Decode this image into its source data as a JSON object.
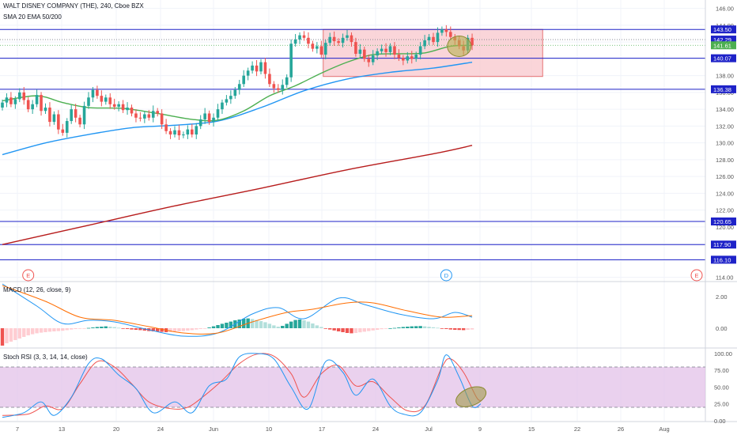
{
  "header": {
    "symbol_line": "WALT DISNEY COMPANY (THE), 240, Cboe BZX",
    "indicators_line": "SMA 20 EMA 50/200"
  },
  "panes": {
    "macd_label": "MACD (12, 26, close, 9)",
    "stoch_label": "Stoch RSI (3, 3, 14, 14, close)"
  },
  "colors": {
    "up": "#26a69a",
    "down": "#ef5350",
    "sma20": "#4caf50",
    "ema50": "#2196f3",
    "ema200": "#b71c1c",
    "level_line": "#1e22c8",
    "macd_line": "#2196f3",
    "signal_line": "#ff6d00",
    "stoch_k": "#2196f3",
    "stoch_d": "#ef5350",
    "box_fill": "#f8c7cc",
    "box_stroke": "#e57373",
    "ellipse_fill": "#b8b050",
    "stoch_band": "#e1bee7"
  },
  "chart_data": [
    {
      "type": "candlestick",
      "pane": "price",
      "ylim": [
        113.5,
        147
      ],
      "yticks": [
        114,
        116,
        118,
        120,
        122,
        124,
        126,
        128,
        130,
        132,
        134,
        136,
        138,
        140,
        142,
        144,
        146
      ],
      "xticks": [
        "7",
        "13",
        "Jun",
        "20",
        "24",
        "Jun",
        "10",
        "17",
        "24",
        "Jul",
        "9",
        "15",
        "22",
        "26",
        "Aug"
      ],
      "level_lines": [
        143.5,
        140.07,
        136.38,
        120.65,
        117.9,
        116.1
      ],
      "price_tags": [
        {
          "value": 143.5,
          "label": "143.50",
          "color": "#1e22c8"
        },
        {
          "value": 142.29,
          "label": "142.29",
          "color": "#1e22c8"
        },
        {
          "value": 141.61,
          "label": "141.61",
          "color": "#4caf50"
        },
        {
          "value": 140.07,
          "label": "140.07",
          "color": "#1e22c8"
        },
        {
          "value": 136.38,
          "label": "136.38",
          "color": "#1e22c8"
        },
        {
          "value": 120.65,
          "label": "120.65",
          "color": "#1e22c8"
        },
        {
          "value": 117.9,
          "label": "117.90",
          "color": "#1e22c8"
        },
        {
          "value": 116.1,
          "label": "116.10",
          "color": "#1e22c8"
        }
      ],
      "events": [
        {
          "bar": 6,
          "label": "E",
          "kind": "earnings"
        },
        {
          "bar": 103,
          "label": "D",
          "kind": "dividend"
        },
        {
          "bar": 158,
          "label": "E",
          "kind": "earnings"
        }
      ],
      "range_box": {
        "bar_start": 75,
        "bar_end": 125,
        "top": 143.5,
        "bottom": 137.9
      },
      "closes": [
        134.8,
        135.4,
        134.6,
        135.2,
        136.0,
        135.1,
        134.0,
        134.6,
        135.7,
        133.8,
        134.2,
        132.5,
        133.4,
        131.6,
        131.2,
        132.6,
        134.0,
        133.0,
        132.2,
        134.4,
        135.4,
        136.3,
        135.6,
        134.9,
        135.4,
        134.6,
        134.3,
        134.6,
        133.9,
        134.2,
        133.5,
        133.0,
        132.9,
        133.4,
        133.0,
        133.8,
        133.5,
        132.2,
        131.4,
        131.0,
        131.5,
        130.9,
        131.0,
        131.6,
        131.0,
        132.0,
        132.8,
        133.5,
        132.5,
        133.0,
        134.0,
        134.8,
        135.2,
        135.6,
        136.3,
        137.0,
        138.0,
        138.6,
        139.2,
        138.5,
        139.6,
        138.2,
        137.0,
        136.5,
        136.3,
        136.9,
        137.8,
        141.8,
        142.3,
        142.8,
        142.5,
        141.8,
        141.2,
        141.5,
        140.5,
        141.9,
        142.6,
        142.1,
        141.9,
        142.5,
        142.8,
        142.0,
        140.6,
        141.1,
        140.0,
        139.6,
        140.4,
        140.9,
        141.2,
        140.8,
        141.5,
        140.5,
        140.1,
        139.8,
        140.3,
        140.0,
        140.5,
        141.5,
        142.2,
        142.6,
        142.0,
        143.1,
        143.5,
        143.2,
        142.6,
        142.2,
        141.5,
        141.0,
        142.5,
        141.6
      ],
      "opens": [
        134.2,
        134.8,
        135.4,
        134.6,
        135.2,
        136.0,
        135.1,
        134.0,
        134.6,
        135.7,
        133.8,
        134.2,
        132.5,
        133.4,
        131.6,
        131.2,
        132.6,
        134.0,
        133.0,
        132.2,
        134.4,
        135.4,
        136.3,
        135.6,
        134.9,
        135.4,
        134.6,
        134.3,
        134.6,
        133.9,
        134.2,
        133.5,
        133.0,
        132.9,
        133.4,
        133.0,
        133.8,
        133.5,
        132.2,
        131.4,
        131.0,
        131.5,
        130.9,
        131.0,
        131.6,
        131.0,
        132.0,
        132.8,
        133.5,
        132.5,
        133.0,
        134.0,
        134.8,
        135.2,
        135.6,
        136.3,
        137.0,
        138.0,
        138.6,
        139.2,
        138.5,
        139.6,
        138.2,
        137.0,
        136.5,
        136.3,
        136.9,
        137.8,
        141.8,
        142.3,
        142.8,
        142.5,
        141.8,
        141.2,
        141.5,
        140.5,
        141.9,
        142.6,
        142.1,
        141.9,
        142.5,
        142.8,
        142.0,
        140.6,
        141.1,
        140.0,
        139.6,
        140.4,
        140.9,
        141.2,
        140.8,
        141.5,
        140.5,
        140.1,
        139.8,
        140.3,
        140.0,
        140.5,
        141.5,
        142.2,
        142.6,
        142.0,
        143.1,
        143.5,
        143.2,
        142.6,
        142.2,
        141.5,
        141.0,
        142.5
      ],
      "sma20": [
        {
          "bar": 0,
          "value": 135.0
        },
        {
          "bar": 8,
          "value": 135.6
        },
        {
          "bar": 14,
          "value": 134.8
        },
        {
          "bar": 20,
          "value": 134.2
        },
        {
          "bar": 28,
          "value": 134.1
        },
        {
          "bar": 36,
          "value": 133.5
        },
        {
          "bar": 44,
          "value": 132.8
        },
        {
          "bar": 50,
          "value": 132.7
        },
        {
          "bar": 56,
          "value": 133.8
        },
        {
          "bar": 62,
          "value": 135.6
        },
        {
          "bar": 68,
          "value": 136.8
        },
        {
          "bar": 74,
          "value": 138.3
        },
        {
          "bar": 80,
          "value": 139.6
        },
        {
          "bar": 86,
          "value": 140.5
        },
        {
          "bar": 92,
          "value": 140.6
        },
        {
          "bar": 98,
          "value": 140.7
        },
        {
          "bar": 104,
          "value": 141.5
        },
        {
          "bar": 109,
          "value": 141.6
        }
      ],
      "ema50": [
        {
          "bar": 0,
          "value": 128.6
        },
        {
          "bar": 10,
          "value": 130.0
        },
        {
          "bar": 20,
          "value": 131.0
        },
        {
          "bar": 30,
          "value": 131.8
        },
        {
          "bar": 40,
          "value": 132.1
        },
        {
          "bar": 50,
          "value": 132.6
        },
        {
          "bar": 60,
          "value": 134.2
        },
        {
          "bar": 70,
          "value": 136.2
        },
        {
          "bar": 80,
          "value": 137.6
        },
        {
          "bar": 90,
          "value": 138.4
        },
        {
          "bar": 100,
          "value": 138.9
        },
        {
          "bar": 109,
          "value": 139.6
        }
      ],
      "ema200": [
        {
          "bar": 0,
          "value": 117.9
        },
        {
          "bar": 20,
          "value": 120.2
        },
        {
          "bar": 40,
          "value": 122.5
        },
        {
          "bar": 60,
          "value": 124.6
        },
        {
          "bar": 80,
          "value": 126.8
        },
        {
          "bar": 100,
          "value": 128.7
        },
        {
          "bar": 109,
          "value": 129.7
        }
      ],
      "highlight_ellipse": {
        "bar": 106,
        "value": 141.5
      }
    },
    {
      "type": "line",
      "pane": "macd",
      "ylim": [
        -1.25,
        2.9
      ],
      "yticks": [
        0.0,
        2.0
      ],
      "ytick_labels": [
        "0.00",
        "2.00"
      ],
      "histogram": [
        -1.1,
        -0.95,
        -0.85,
        -0.75,
        -0.65,
        -0.55,
        -0.45,
        -0.38,
        -0.32,
        -0.28,
        -0.25,
        -0.22,
        -0.2,
        -0.18,
        -0.16,
        -0.12,
        -0.08,
        -0.05,
        -0.03,
        -0.02,
        0.02,
        0.05,
        0.08,
        0.1,
        0.12,
        0.1,
        0.07,
        0.03,
        -0.02,
        -0.05,
        -0.08,
        -0.1,
        -0.12,
        -0.15,
        -0.18,
        -0.2,
        -0.22,
        -0.23,
        -0.25,
        -0.24,
        -0.22,
        -0.2,
        -0.18,
        -0.15,
        -0.12,
        -0.08,
        -0.05,
        -0.02,
        0.05,
        0.12,
        0.2,
        0.28,
        0.35,
        0.42,
        0.5,
        0.55,
        0.6,
        0.62,
        0.58,
        0.52,
        0.45,
        0.38,
        0.28,
        0.18,
        0.1,
        0.15,
        0.28,
        0.42,
        0.52,
        0.55,
        0.5,
        0.42,
        0.3,
        0.18,
        0.08,
        -0.02,
        -0.08,
        -0.14,
        -0.2,
        -0.25,
        -0.3,
        -0.32,
        -0.3,
        -0.26,
        -0.22,
        -0.18,
        -0.14,
        -0.1,
        -0.06,
        -0.03,
        0.0,
        0.02,
        0.05,
        0.08,
        0.1,
        0.12,
        0.13,
        0.14,
        0.12,
        0.09,
        0.06,
        0.03,
        -0.02,
        -0.05,
        -0.08,
        -0.1,
        -0.11,
        -0.12,
        -0.1,
        -0.08
      ],
      "series": [
        {
          "values": [
            {
              "bar": 0,
              "value": 2.8
            },
            {
              "bar": 8,
              "value": 1.4
            },
            {
              "bar": 14,
              "value": 0.3
            },
            {
              "bar": 20,
              "value": 0.5
            },
            {
              "bar": 26,
              "value": 0.4
            },
            {
              "bar": 34,
              "value": -0.1
            },
            {
              "bar": 42,
              "value": -0.5
            },
            {
              "bar": 50,
              "value": -0.3
            },
            {
              "bar": 58,
              "value": 0.9
            },
            {
              "bar": 64,
              "value": 1.3
            },
            {
              "bar": 70,
              "value": 0.6
            },
            {
              "bar": 78,
              "value": 1.9
            },
            {
              "bar": 84,
              "value": 1.5
            },
            {
              "bar": 92,
              "value": 0.9
            },
            {
              "bar": 100,
              "value": 0.6
            },
            {
              "bar": 105,
              "value": 1.0
            },
            {
              "bar": 109,
              "value": 0.7
            }
          ]
        },
        {
          "values": [
            {
              "bar": 0,
              "value": 2.7
            },
            {
              "bar": 10,
              "value": 1.7
            },
            {
              "bar": 18,
              "value": 0.7
            },
            {
              "bar": 26,
              "value": 0.5
            },
            {
              "bar": 34,
              "value": 0.1
            },
            {
              "bar": 42,
              "value": -0.3
            },
            {
              "bar": 50,
              "value": -0.3
            },
            {
              "bar": 58,
              "value": 0.4
            },
            {
              "bar": 66,
              "value": 1.0
            },
            {
              "bar": 72,
              "value": 1.2
            },
            {
              "bar": 80,
              "value": 1.6
            },
            {
              "bar": 86,
              "value": 1.6
            },
            {
              "bar": 94,
              "value": 1.1
            },
            {
              "bar": 102,
              "value": 0.7
            },
            {
              "bar": 109,
              "value": 0.8
            }
          ]
        }
      ]
    },
    {
      "type": "line",
      "pane": "stoch_rsi",
      "ylim": [
        0,
        107
      ],
      "yticks": [
        0.0,
        25.0,
        50.0,
        75.0,
        100.0
      ],
      "ytick_labels": [
        "0.00",
        "25.00",
        "50.00",
        "75.00",
        "100.00"
      ],
      "band": [
        20,
        80
      ],
      "series": [
        {
          "values": [
            {
              "bar": 0,
              "value": 5
            },
            {
              "bar": 5,
              "value": 12
            },
            {
              "bar": 9,
              "value": 28
            },
            {
              "bar": 12,
              "value": 8
            },
            {
              "bar": 16,
              "value": 35
            },
            {
              "bar": 20,
              "value": 85
            },
            {
              "bar": 23,
              "value": 92
            },
            {
              "bar": 27,
              "value": 68
            },
            {
              "bar": 31,
              "value": 48
            },
            {
              "bar": 35,
              "value": 12
            },
            {
              "bar": 40,
              "value": 28
            },
            {
              "bar": 44,
              "value": 12
            },
            {
              "bar": 48,
              "value": 52
            },
            {
              "bar": 52,
              "value": 62
            },
            {
              "bar": 55,
              "value": 95
            },
            {
              "bar": 59,
              "value": 100
            },
            {
              "bar": 63,
              "value": 92
            },
            {
              "bar": 67,
              "value": 50
            },
            {
              "bar": 71,
              "value": 18
            },
            {
              "bar": 75,
              "value": 88
            },
            {
              "bar": 79,
              "value": 72
            },
            {
              "bar": 82,
              "value": 38
            },
            {
              "bar": 86,
              "value": 62
            },
            {
              "bar": 90,
              "value": 22
            },
            {
              "bar": 93,
              "value": 10
            },
            {
              "bar": 97,
              "value": 12
            },
            {
              "bar": 101,
              "value": 60
            },
            {
              "bar": 103,
              "value": 98
            },
            {
              "bar": 106,
              "value": 65
            },
            {
              "bar": 109,
              "value": 22
            },
            {
              "bar": 111,
              "value": 25
            }
          ]
        },
        {
          "values": [
            {
              "bar": 0,
              "value": 8
            },
            {
              "bar": 6,
              "value": 10
            },
            {
              "bar": 10,
              "value": 22
            },
            {
              "bar": 14,
              "value": 18
            },
            {
              "bar": 18,
              "value": 55
            },
            {
              "bar": 22,
              "value": 88
            },
            {
              "bar": 26,
              "value": 80
            },
            {
              "bar": 30,
              "value": 55
            },
            {
              "bar": 34,
              "value": 28
            },
            {
              "bar": 39,
              "value": 18
            },
            {
              "bar": 43,
              "value": 20
            },
            {
              "bar": 47,
              "value": 38
            },
            {
              "bar": 51,
              "value": 60
            },
            {
              "bar": 55,
              "value": 85
            },
            {
              "bar": 59,
              "value": 99
            },
            {
              "bar": 63,
              "value": 96
            },
            {
              "bar": 67,
              "value": 70
            },
            {
              "bar": 70,
              "value": 35
            },
            {
              "bar": 74,
              "value": 70
            },
            {
              "bar": 78,
              "value": 82
            },
            {
              "bar": 82,
              "value": 52
            },
            {
              "bar": 86,
              "value": 58
            },
            {
              "bar": 90,
              "value": 35
            },
            {
              "bar": 94,
              "value": 15
            },
            {
              "bar": 98,
              "value": 22
            },
            {
              "bar": 102,
              "value": 80
            },
            {
              "bar": 104,
              "value": 92
            },
            {
              "bar": 107,
              "value": 72
            },
            {
              "bar": 110,
              "value": 35
            },
            {
              "bar": 111,
              "value": 30
            }
          ]
        }
      ],
      "highlight_ellipse": {
        "bar": 108,
        "value": 38
      }
    }
  ]
}
